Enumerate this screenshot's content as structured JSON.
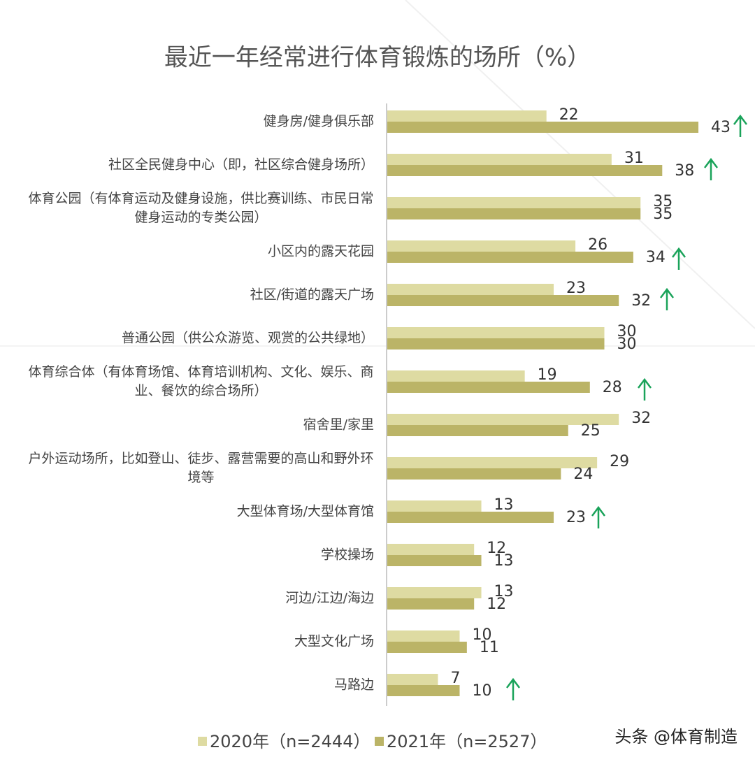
{
  "chart_data": {
    "type": "bar",
    "orientation": "horizontal",
    "title": "最近一年经常进行体育锻炼的场所（%）",
    "categories": [
      "健身房/健身俱乐部",
      "社区全民健身中心（即，社区综合健身场所）",
      "体育公园（有体育运动及健身设施，供比赛训练、市民日常健身运动的专类公园）",
      "小区内的露天花园",
      "社区/街道的露天广场",
      "普通公园（供公众游览、观赏的公共绿地）",
      "体育综合体（有体育场馆、体育培训机构、文化、娱乐、商业、餐饮的综合场所）",
      "宿舍里/家里",
      "户外运动场所，比如登山、徒步、露营需要的高山和野外环境等",
      "大型体育场/大型体育馆",
      "学校操场",
      "河边/江边/海边",
      "大型文化广场",
      "马路边"
    ],
    "series": [
      {
        "name": "2020年（n=2444）",
        "color": "#dedba2",
        "values": [
          22,
          31,
          35,
          26,
          23,
          30,
          19,
          32,
          29,
          13,
          12,
          13,
          10,
          7
        ]
      },
      {
        "name": "2021年（n=2527）",
        "color": "#bbb467",
        "values": [
          43,
          38,
          35,
          34,
          32,
          30,
          28,
          25,
          24,
          23,
          13,
          12,
          11,
          10
        ]
      }
    ],
    "legend": "bottom",
    "watermark": "头条 @体育制造"
  }
}
